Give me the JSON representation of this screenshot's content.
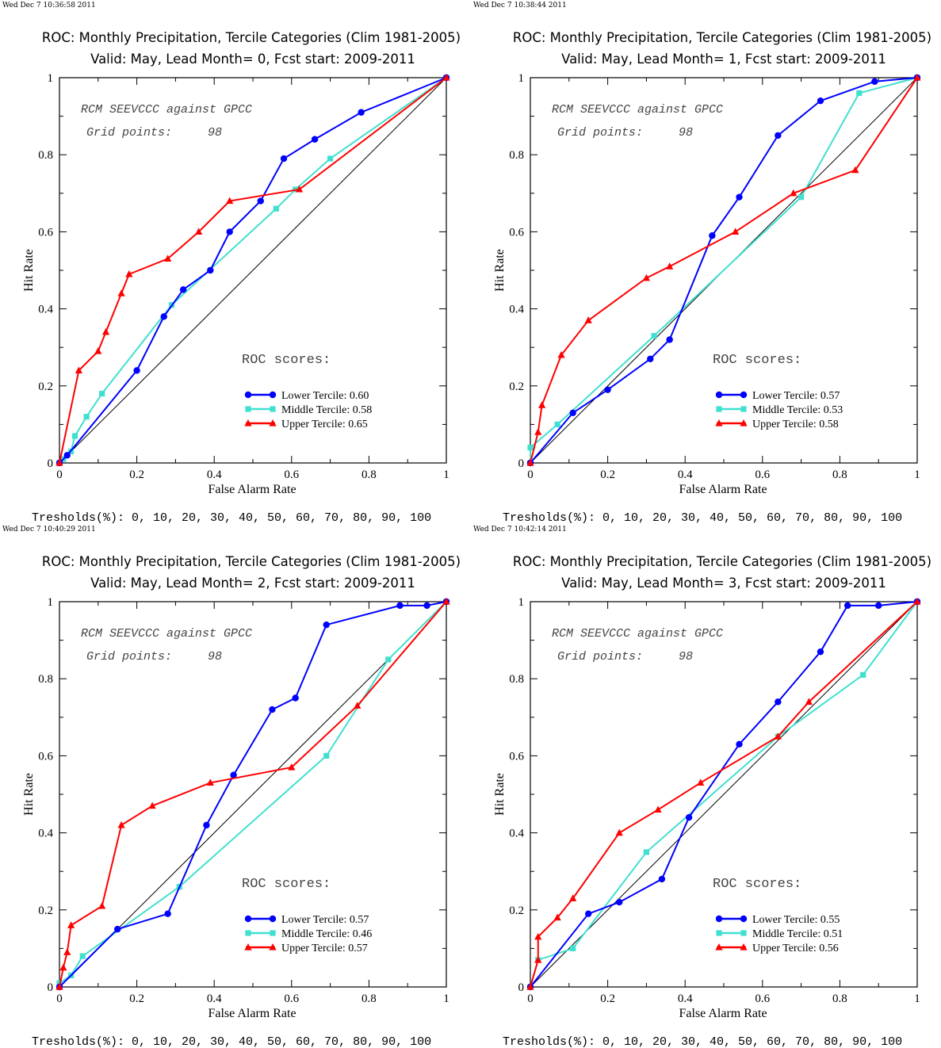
{
  "axis": {
    "xlabel": "False Alarm Rate",
    "ylabel": "Hit Rate",
    "ticks": [
      "0",
      "0.2",
      "0.4",
      "0.6",
      "0.8",
      "1"
    ]
  },
  "annotation": {
    "line1": "RCM SEEVCCC against GPCC",
    "line2_label": "Grid points:",
    "line2_value": "98",
    "scores_heading": "ROC scores:"
  },
  "thresholds_text": "Tresholds(%): 0, 10, 20, 30, 40, 50, 60, 70, 80, 90, 100",
  "colors": {
    "lower": "#0000ff",
    "middle": "#40e0d0",
    "upper": "#ff0000",
    "diagonal": "#000000"
  },
  "panels": [
    {
      "timestamp": "Wed Dec  7 10:36:58 2011",
      "title_line1": "ROC: Monthly Precipitation, Tercile Categories (Clim 1981-2005)",
      "title_line2": "Valid: May, Lead Month= 0, Fcst start: 2009-2011",
      "legend": [
        "Lower Tercile: 0.60",
        "Middle Tercile: 0.58",
        "Upper Tercile: 0.65"
      ]
    },
    {
      "timestamp": "Wed Dec  7 10:38:44 2011",
      "title_line1": "ROC: Monthly Precipitation, Tercile Categories (Clim 1981-2005)",
      "title_line2": "Valid: May, Lead Month= 1, Fcst start: 2009-2011",
      "legend": [
        "Lower Tercile: 0.57",
        "Middle Tercile: 0.53",
        "Upper Tercile: 0.58"
      ]
    },
    {
      "timestamp": "Wed Dec  7 10:40:29 2011",
      "title_line1": "ROC: Monthly Precipitation, Tercile Categories (Clim 1981-2005)",
      "title_line2": "Valid: May, Lead Month= 2, Fcst start: 2009-2011",
      "legend": [
        "Lower Tercile: 0.57",
        "Middle Tercile: 0.46",
        "Upper Tercile: 0.57"
      ]
    },
    {
      "timestamp": "Wed Dec  7 10:42:14 2011",
      "title_line1": "ROC: Monthly Precipitation, Tercile Categories (Clim 1981-2005)",
      "title_line2": "Valid: May, Lead Month= 3, Fcst start: 2009-2011",
      "legend": [
        "Lower Tercile: 0.55",
        "Middle Tercile: 0.51",
        "Upper Tercile: 0.56"
      ]
    }
  ],
  "chart_data": [
    {
      "type": "line",
      "title": "ROC: Monthly Precipitation, Tercile Categories (Clim 1981-2005) / Valid: May, Lead Month= 0, Fcst start: 2009-2011",
      "xlabel": "False Alarm Rate",
      "ylabel": "Hit Rate",
      "xlim": [
        0,
        1
      ],
      "ylim": [
        0,
        1
      ],
      "legend_position": "bottom-right",
      "series": [
        {
          "name": "Lower Tercile: 0.60",
          "color": "#0000ff",
          "marker": "circle",
          "points": [
            [
              0,
              0
            ],
            [
              0.02,
              0.02
            ],
            [
              0.2,
              0.24
            ],
            [
              0.27,
              0.38
            ],
            [
              0.32,
              0.45
            ],
            [
              0.39,
              0.5
            ],
            [
              0.44,
              0.6
            ],
            [
              0.52,
              0.68
            ],
            [
              0.58,
              0.79
            ],
            [
              0.66,
              0.84
            ],
            [
              0.78,
              0.91
            ],
            [
              1,
              1
            ]
          ]
        },
        {
          "name": "Middle Tercile: 0.58",
          "color": "#40e0d0",
          "marker": "square",
          "points": [
            [
              0,
              0
            ],
            [
              0.01,
              0.01
            ],
            [
              0.03,
              0.03
            ],
            [
              0.04,
              0.07
            ],
            [
              0.07,
              0.12
            ],
            [
              0.11,
              0.18
            ],
            [
              0.29,
              0.41
            ],
            [
              0.56,
              0.66
            ],
            [
              0.61,
              0.71
            ],
            [
              0.7,
              0.79
            ],
            [
              1,
              1
            ]
          ]
        },
        {
          "name": "Upper Tercile: 0.65",
          "color": "#ff0000",
          "marker": "triangle",
          "points": [
            [
              0,
              0
            ],
            [
              0.05,
              0.24
            ],
            [
              0.1,
              0.29
            ],
            [
              0.12,
              0.34
            ],
            [
              0.16,
              0.44
            ],
            [
              0.18,
              0.49
            ],
            [
              0.28,
              0.53
            ],
            [
              0.36,
              0.6
            ],
            [
              0.44,
              0.68
            ],
            [
              0.62,
              0.71
            ],
            [
              1,
              1
            ]
          ]
        },
        {
          "name": "",
          "color": "#000000",
          "marker": "none",
          "points": [
            [
              0,
              0
            ],
            [
              1,
              1
            ]
          ]
        }
      ]
    },
    {
      "type": "line",
      "title": "ROC: Monthly Precipitation, Tercile Categories (Clim 1981-2005) / Valid: May, Lead Month= 1, Fcst start: 2009-2011",
      "xlabel": "False Alarm Rate",
      "ylabel": "Hit Rate",
      "xlim": [
        0,
        1
      ],
      "ylim": [
        0,
        1
      ],
      "legend_position": "bottom-right",
      "series": [
        {
          "name": "Lower Tercile: 0.57",
          "color": "#0000ff",
          "marker": "circle",
          "points": [
            [
              0,
              0
            ],
            [
              0.11,
              0.13
            ],
            [
              0.2,
              0.19
            ],
            [
              0.31,
              0.27
            ],
            [
              0.36,
              0.32
            ],
            [
              0.47,
              0.59
            ],
            [
              0.54,
              0.69
            ],
            [
              0.64,
              0.85
            ],
            [
              0.75,
              0.94
            ],
            [
              0.89,
              0.99
            ],
            [
              1,
              1
            ]
          ]
        },
        {
          "name": "Middle Tercile: 0.53",
          "color": "#40e0d0",
          "marker": "square",
          "points": [
            [
              0,
              0
            ],
            [
              0.0,
              0.04
            ],
            [
              0.07,
              0.1
            ],
            [
              0.32,
              0.33
            ],
            [
              0.7,
              0.69
            ],
            [
              0.85,
              0.96
            ],
            [
              1,
              1
            ]
          ]
        },
        {
          "name": "Upper Tercile: 0.58",
          "color": "#ff0000",
          "marker": "triangle",
          "points": [
            [
              0,
              0
            ],
            [
              0.02,
              0.08
            ],
            [
              0.03,
              0.15
            ],
            [
              0.08,
              0.28
            ],
            [
              0.15,
              0.37
            ],
            [
              0.3,
              0.48
            ],
            [
              0.36,
              0.51
            ],
            [
              0.53,
              0.6
            ],
            [
              0.68,
              0.7
            ],
            [
              0.84,
              0.76
            ],
            [
              1,
              1
            ]
          ]
        },
        {
          "name": "",
          "color": "#000000",
          "marker": "none",
          "points": [
            [
              0,
              0
            ],
            [
              1,
              1
            ]
          ]
        }
      ]
    },
    {
      "type": "line",
      "title": "ROC: Monthly Precipitation, Tercile Categories (Clim 1981-2005) / Valid: May, Lead Month= 2, Fcst start: 2009-2011",
      "xlabel": "False Alarm Rate",
      "ylabel": "Hit Rate",
      "xlim": [
        0,
        1
      ],
      "ylim": [
        0,
        1
      ],
      "legend_position": "bottom-right",
      "series": [
        {
          "name": "Lower Tercile: 0.57",
          "color": "#0000ff",
          "marker": "circle",
          "points": [
            [
              0,
              0
            ],
            [
              0.15,
              0.15
            ],
            [
              0.28,
              0.19
            ],
            [
              0.38,
              0.42
            ],
            [
              0.45,
              0.55
            ],
            [
              0.55,
              0.72
            ],
            [
              0.61,
              0.75
            ],
            [
              0.69,
              0.94
            ],
            [
              0.88,
              0.99
            ],
            [
              0.95,
              0.99
            ],
            [
              1,
              1
            ]
          ]
        },
        {
          "name": "Middle Tercile: 0.46",
          "color": "#40e0d0",
          "marker": "square",
          "points": [
            [
              0,
              0
            ],
            [
              0.0,
              0.01
            ],
            [
              0.03,
              0.03
            ],
            [
              0.06,
              0.08
            ],
            [
              0.31,
              0.26
            ],
            [
              0.69,
              0.6
            ],
            [
              0.85,
              0.85
            ],
            [
              1,
              1
            ]
          ]
        },
        {
          "name": "Upper Tercile: 0.57",
          "color": "#ff0000",
          "marker": "triangle",
          "points": [
            [
              0,
              0
            ],
            [
              0.01,
              0.05
            ],
            [
              0.02,
              0.09
            ],
            [
              0.03,
              0.16
            ],
            [
              0.11,
              0.21
            ],
            [
              0.16,
              0.42
            ],
            [
              0.24,
              0.47
            ],
            [
              0.39,
              0.53
            ],
            [
              0.6,
              0.57
            ],
            [
              0.77,
              0.73
            ],
            [
              1,
              1
            ]
          ]
        },
        {
          "name": "",
          "color": "#000000",
          "marker": "none",
          "points": [
            [
              0,
              0
            ],
            [
              1,
              1
            ]
          ]
        }
      ]
    },
    {
      "type": "line",
      "title": "ROC: Monthly Precipitation, Tercile Categories (Clim 1981-2005) / Valid: May, Lead Month= 3, Fcst start: 2009-2011",
      "xlabel": "False Alarm Rate",
      "ylabel": "Hit Rate",
      "xlim": [
        0,
        1
      ],
      "ylim": [
        0,
        1
      ],
      "legend_position": "bottom-right",
      "series": [
        {
          "name": "Lower Tercile: 0.55",
          "color": "#0000ff",
          "marker": "circle",
          "points": [
            [
              0,
              0
            ],
            [
              0.15,
              0.19
            ],
            [
              0.23,
              0.22
            ],
            [
              0.34,
              0.28
            ],
            [
              0.41,
              0.44
            ],
            [
              0.54,
              0.63
            ],
            [
              0.64,
              0.74
            ],
            [
              0.75,
              0.87
            ],
            [
              0.82,
              0.99
            ],
            [
              0.9,
              0.99
            ],
            [
              1,
              1
            ]
          ]
        },
        {
          "name": "Middle Tercile: 0.51",
          "color": "#40e0d0",
          "marker": "square",
          "points": [
            [
              0,
              0
            ],
            [
              0.02,
              0.07
            ],
            [
              0.11,
              0.1
            ],
            [
              0.3,
              0.35
            ],
            [
              0.64,
              0.65
            ],
            [
              0.86,
              0.81
            ],
            [
              1,
              1
            ]
          ]
        },
        {
          "name": "Upper Tercile: 0.56",
          "color": "#ff0000",
          "marker": "triangle",
          "points": [
            [
              0,
              0
            ],
            [
              0.02,
              0.07
            ],
            [
              0.02,
              0.13
            ],
            [
              0.07,
              0.18
            ],
            [
              0.11,
              0.23
            ],
            [
              0.23,
              0.4
            ],
            [
              0.33,
              0.46
            ],
            [
              0.44,
              0.53
            ],
            [
              0.64,
              0.65
            ],
            [
              0.72,
              0.74
            ],
            [
              1,
              1
            ]
          ]
        },
        {
          "name": "",
          "color": "#000000",
          "marker": "none",
          "points": [
            [
              0,
              0
            ],
            [
              1,
              1
            ]
          ]
        }
      ]
    }
  ]
}
